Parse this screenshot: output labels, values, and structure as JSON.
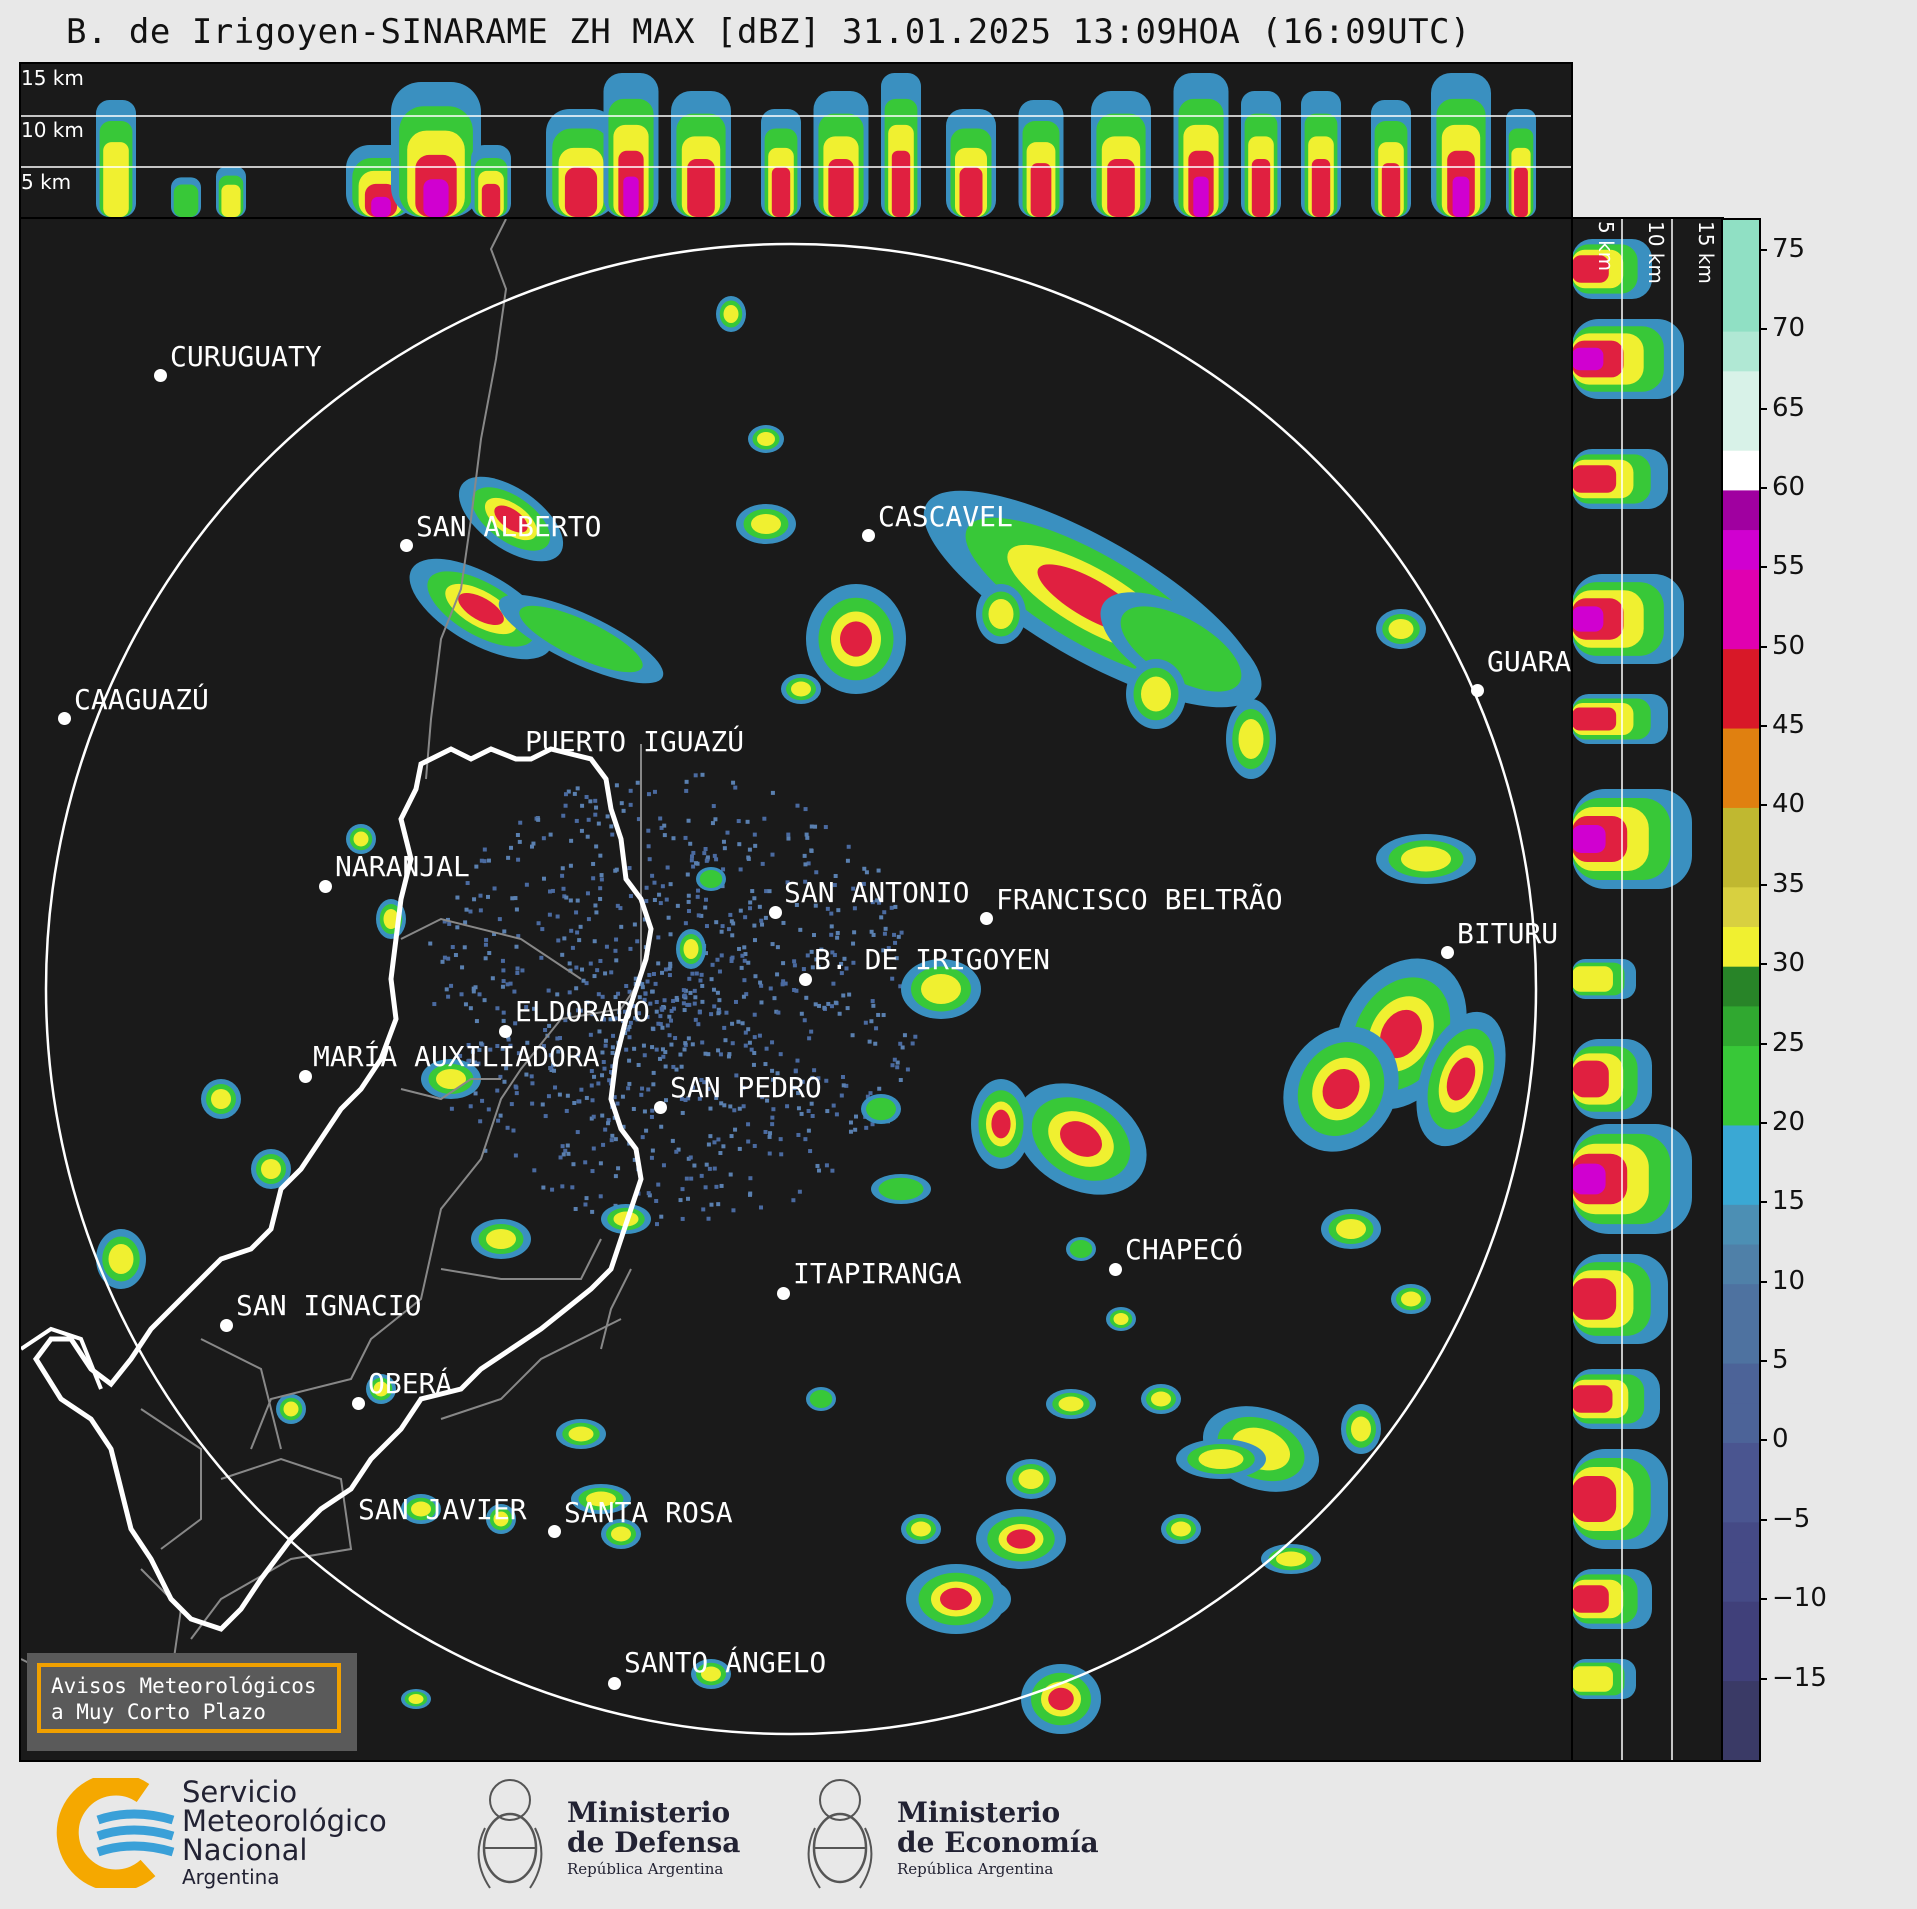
{
  "title": "B. de Irigoyen-SINARAME ZH MAX [dBZ] 31.01.2025 13:09HOA (16:09UTC)",
  "top_panel": {
    "labels": [
      "15 km",
      "10 km",
      "5 km"
    ]
  },
  "right_panel": {
    "labels": [
      "5 km",
      "10 km",
      "15 km"
    ]
  },
  "colorbar": {
    "ticks": [
      "75",
      "70",
      "65",
      "60",
      "55",
      "50",
      "45",
      "40",
      "35",
      "30",
      "25",
      "20",
      "15",
      "10",
      "5",
      "0",
      "−5",
      "−10",
      "−15"
    ],
    "colors": [
      "#3a3a66",
      "#40407a",
      "#454a86",
      "#4a5590",
      "#4c6398",
      "#4e72a0",
      "#4f80a8",
      "#4c8fb4",
      "#3a9fcc",
      "#30b0d8",
      "#38d838",
      "#30c030",
      "#2ca02c",
      "#288428",
      "#f0f030",
      "#d8d030",
      "#c8c030",
      "#d09020",
      "#e08010",
      "#e02040",
      "#d01020",
      "#b00010",
      "#900010",
      "#e000b0",
      "#d000d0",
      "#a000a0",
      "#ffffff",
      "#e0f4ee",
      "#b0e8d0",
      "#90e0c0"
    ],
    "unit": "dBZ"
  },
  "cities": [
    {
      "name": "CURUGUATY"
    },
    {
      "name": "SAN ALBERTO"
    },
    {
      "name": "CAAGUAZÚ"
    },
    {
      "name": "PUERTO IGUAZÚ"
    },
    {
      "name": "CASCAVEL"
    },
    {
      "name": "GUARA"
    },
    {
      "name": "NARANJAL"
    },
    {
      "name": "SAN ANTONIO"
    },
    {
      "name": "FRANCISCO BELTRÃO"
    },
    {
      "name": "BITURU"
    },
    {
      "name": "B. DE IRIGOYEN"
    },
    {
      "name": "ELDORADO"
    },
    {
      "name": "MARÍA AUXILIADORA"
    },
    {
      "name": "SAN PEDRO"
    },
    {
      "name": "CHAPECÓ"
    },
    {
      "name": "ITAPIRANGA"
    },
    {
      "name": "SAN IGNACIO"
    },
    {
      "name": "OBERÁ"
    },
    {
      "name": "SAN JAVIER"
    },
    {
      "name": "SANTA ROSA"
    },
    {
      "name": "SANTO ÁNGELO"
    }
  ],
  "aviso": {
    "line1": "Avisos Meteorológicos",
    "line2": "a Muy Corto Plazo"
  },
  "footer": {
    "smn": {
      "line1": "Servicio",
      "line2": "Meteorológico",
      "line3": "Nacional",
      "line4": "Argentina"
    },
    "defensa": {
      "line1": "Ministerio",
      "line2": "de Defensa",
      "line3": "República Argentina"
    },
    "economia": {
      "line1": "Ministerio",
      "line2": "de Economía",
      "line3": "República Argentina"
    }
  }
}
